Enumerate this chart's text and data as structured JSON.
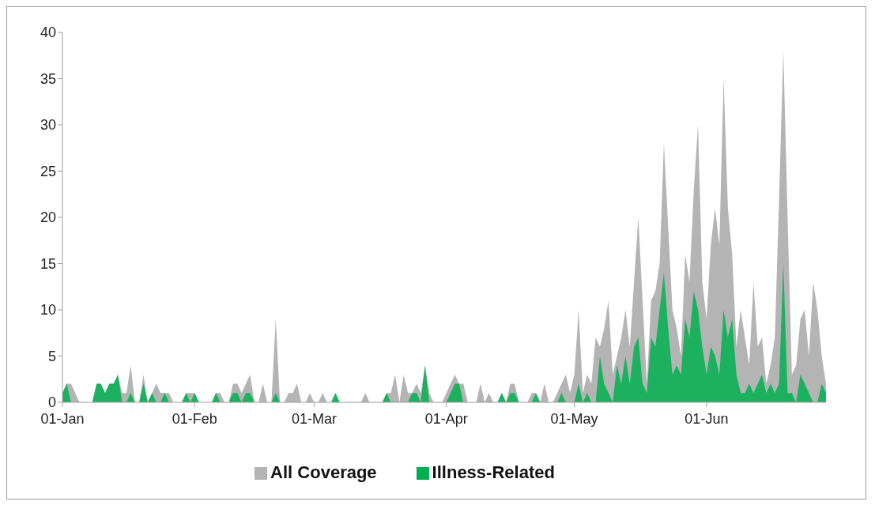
{
  "chart_data": {
    "type": "area",
    "x": [
      "--01-01",
      "--01-02",
      "--01-03",
      "--01-04",
      "--01-05",
      "--01-06",
      "--01-07",
      "--01-08",
      "--01-09",
      "--01-10",
      "--01-11",
      "--01-12",
      "--01-13",
      "--01-14",
      "--01-15",
      "--01-16",
      "--01-17",
      "--01-18",
      "--01-19",
      "--01-20",
      "--01-21",
      "--01-22",
      "--01-23",
      "--01-24",
      "--01-25",
      "--01-26",
      "--01-27",
      "--01-28",
      "--01-29",
      "--01-30",
      "--01-31",
      "--02-01",
      "--02-02",
      "--02-03",
      "--02-04",
      "--02-05",
      "--02-06",
      "--02-07",
      "--02-08",
      "--02-09",
      "--02-10",
      "--02-11",
      "--02-12",
      "--02-13",
      "--02-14",
      "--02-15",
      "--02-16",
      "--02-17",
      "--02-18",
      "--02-19",
      "--02-20",
      "--02-21",
      "--02-22",
      "--02-23",
      "--02-24",
      "--02-25",
      "--02-26",
      "--02-27",
      "--02-28",
      "--03-01",
      "--03-02",
      "--03-03",
      "--03-04",
      "--03-05",
      "--03-06",
      "--03-07",
      "--03-08",
      "--03-09",
      "--03-10",
      "--03-11",
      "--03-12",
      "--03-13",
      "--03-14",
      "--03-15",
      "--03-16",
      "--03-17",
      "--03-18",
      "--03-19",
      "--03-20",
      "--03-21",
      "--03-22",
      "--03-23",
      "--03-24",
      "--03-25",
      "--03-26",
      "--03-27",
      "--03-28",
      "--03-29",
      "--03-30",
      "--03-31",
      "--04-01",
      "--04-02",
      "--04-03",
      "--04-04",
      "--04-05",
      "--04-06",
      "--04-07",
      "--04-08",
      "--04-09",
      "--04-10",
      "--04-11",
      "--04-12",
      "--04-13",
      "--04-14",
      "--04-15",
      "--04-16",
      "--04-17",
      "--04-18",
      "--04-19",
      "--04-20",
      "--04-21",
      "--04-22",
      "--04-23",
      "--04-24",
      "--04-25",
      "--04-26",
      "--04-27",
      "--04-28",
      "--04-29",
      "--04-30",
      "--05-01",
      "--05-02",
      "--05-03",
      "--05-04",
      "--05-05",
      "--05-06",
      "--05-07",
      "--05-08",
      "--05-09",
      "--05-10",
      "--05-11",
      "--05-12",
      "--05-13",
      "--05-14",
      "--05-15",
      "--05-16",
      "--05-17",
      "--05-18",
      "--05-19",
      "--05-20",
      "--05-21",
      "--05-22",
      "--05-23",
      "--05-24",
      "--05-25",
      "--05-26",
      "--05-27",
      "--05-28",
      "--05-29",
      "--05-30",
      "--05-31",
      "--06-01",
      "--06-02",
      "--06-03",
      "--06-04",
      "--06-05",
      "--06-06",
      "--06-07",
      "--06-08",
      "--06-09",
      "--06-10",
      "--06-11",
      "--06-12",
      "--06-13",
      "--06-14",
      "--06-15",
      "--06-16",
      "--06-17",
      "--06-18",
      "--06-19",
      "--06-20",
      "--06-21",
      "--06-22",
      "--06-23",
      "--06-24",
      "--06-25",
      "--06-26",
      "--06-27",
      "--06-28",
      "--06-29"
    ],
    "series": [
      {
        "name": "All Coverage",
        "color": "#b4b4b4",
        "values": [
          1,
          2,
          2,
          1,
          0,
          0,
          0,
          0,
          2,
          2,
          1,
          2,
          2,
          3,
          1,
          1,
          4,
          0,
          0,
          3,
          0,
          1,
          2,
          1,
          1,
          1,
          0,
          0,
          0,
          1,
          1,
          1,
          0,
          0,
          0,
          0,
          1,
          1,
          0,
          0,
          2,
          2,
          1,
          2,
          3,
          0,
          0,
          2,
          0,
          0,
          9,
          0,
          0,
          1,
          1,
          2,
          0,
          0,
          1,
          0,
          0,
          1,
          0,
          0,
          1,
          0,
          0,
          0,
          0,
          0,
          0,
          1,
          0,
          0,
          0,
          0,
          1,
          1,
          3,
          0,
          3,
          1,
          1,
          2,
          1,
          4,
          1,
          0,
          0,
          0,
          1,
          2,
          3,
          2,
          2,
          0,
          0,
          0,
          2,
          0,
          1,
          0,
          0,
          1,
          0,
          2,
          2,
          0,
          0,
          0,
          1,
          1,
          0,
          2,
          0,
          0,
          1,
          2,
          3,
          1,
          3,
          10,
          1,
          3,
          2,
          7,
          6,
          8,
          11,
          3,
          5,
          7,
          10,
          6,
          13,
          20,
          11,
          2,
          11,
          12,
          15,
          28,
          19,
          10,
          8,
          5,
          16,
          13,
          23,
          30,
          13,
          9,
          17,
          21,
          17,
          35,
          21,
          16,
          6,
          10,
          7,
          4,
          13,
          6,
          7,
          2,
          4,
          7,
          22,
          38,
          20,
          3,
          4,
          9,
          10,
          5,
          13,
          10,
          5,
          2
        ]
      },
      {
        "name": "Illness-Related",
        "color": "#00b050",
        "values": [
          1,
          2,
          0,
          0,
          0,
          0,
          0,
          0,
          2,
          2,
          1,
          2,
          2,
          3,
          0,
          0,
          1,
          0,
          0,
          2,
          0,
          1,
          0,
          0,
          1,
          0,
          0,
          0,
          0,
          1,
          0,
          1,
          0,
          0,
          0,
          0,
          1,
          0,
          0,
          0,
          1,
          1,
          0,
          1,
          1,
          0,
          0,
          0,
          0,
          0,
          1,
          0,
          0,
          0,
          0,
          0,
          0,
          0,
          0,
          0,
          0,
          0,
          0,
          0,
          1,
          0,
          0,
          0,
          0,
          0,
          0,
          0,
          0,
          0,
          0,
          0,
          1,
          0,
          0,
          0,
          0,
          0,
          1,
          1,
          0,
          4,
          0,
          0,
          0,
          0,
          0,
          1,
          2,
          2,
          0,
          0,
          0,
          0,
          0,
          0,
          0,
          0,
          0,
          1,
          0,
          1,
          1,
          0,
          0,
          0,
          0,
          1,
          0,
          0,
          0,
          0,
          0,
          1,
          0,
          0,
          0,
          2,
          0,
          1,
          0,
          0,
          5,
          2,
          1,
          0,
          4,
          2,
          5,
          2,
          6,
          7,
          2,
          1,
          7,
          6,
          10,
          14,
          8,
          3,
          4,
          3,
          9,
          7,
          12,
          10,
          6,
          3,
          6,
          5,
          3,
          10,
          7,
          9,
          3,
          1,
          1,
          2,
          1,
          2,
          3,
          1,
          2,
          1,
          2,
          15,
          1,
          1,
          0,
          3,
          2,
          1,
          0,
          0,
          2,
          1
        ]
      }
    ],
    "xlim": [
      "--01-01",
      "--06-29"
    ],
    "xticks": [
      {
        "value": "--01-01",
        "label": "01-Jan"
      },
      {
        "value": "--02-01",
        "label": "01-Feb"
      },
      {
        "value": "--03-01",
        "label": "01-Mar"
      },
      {
        "value": "--04-01",
        "label": "01-Apr"
      },
      {
        "value": "--05-01",
        "label": "01-May"
      },
      {
        "value": "--06-01",
        "label": "01-Jun"
      }
    ],
    "ylim": [
      0,
      40
    ],
    "yticks": [
      0,
      5,
      10,
      15,
      20,
      25,
      30,
      35,
      40
    ],
    "legend": "bottom"
  }
}
